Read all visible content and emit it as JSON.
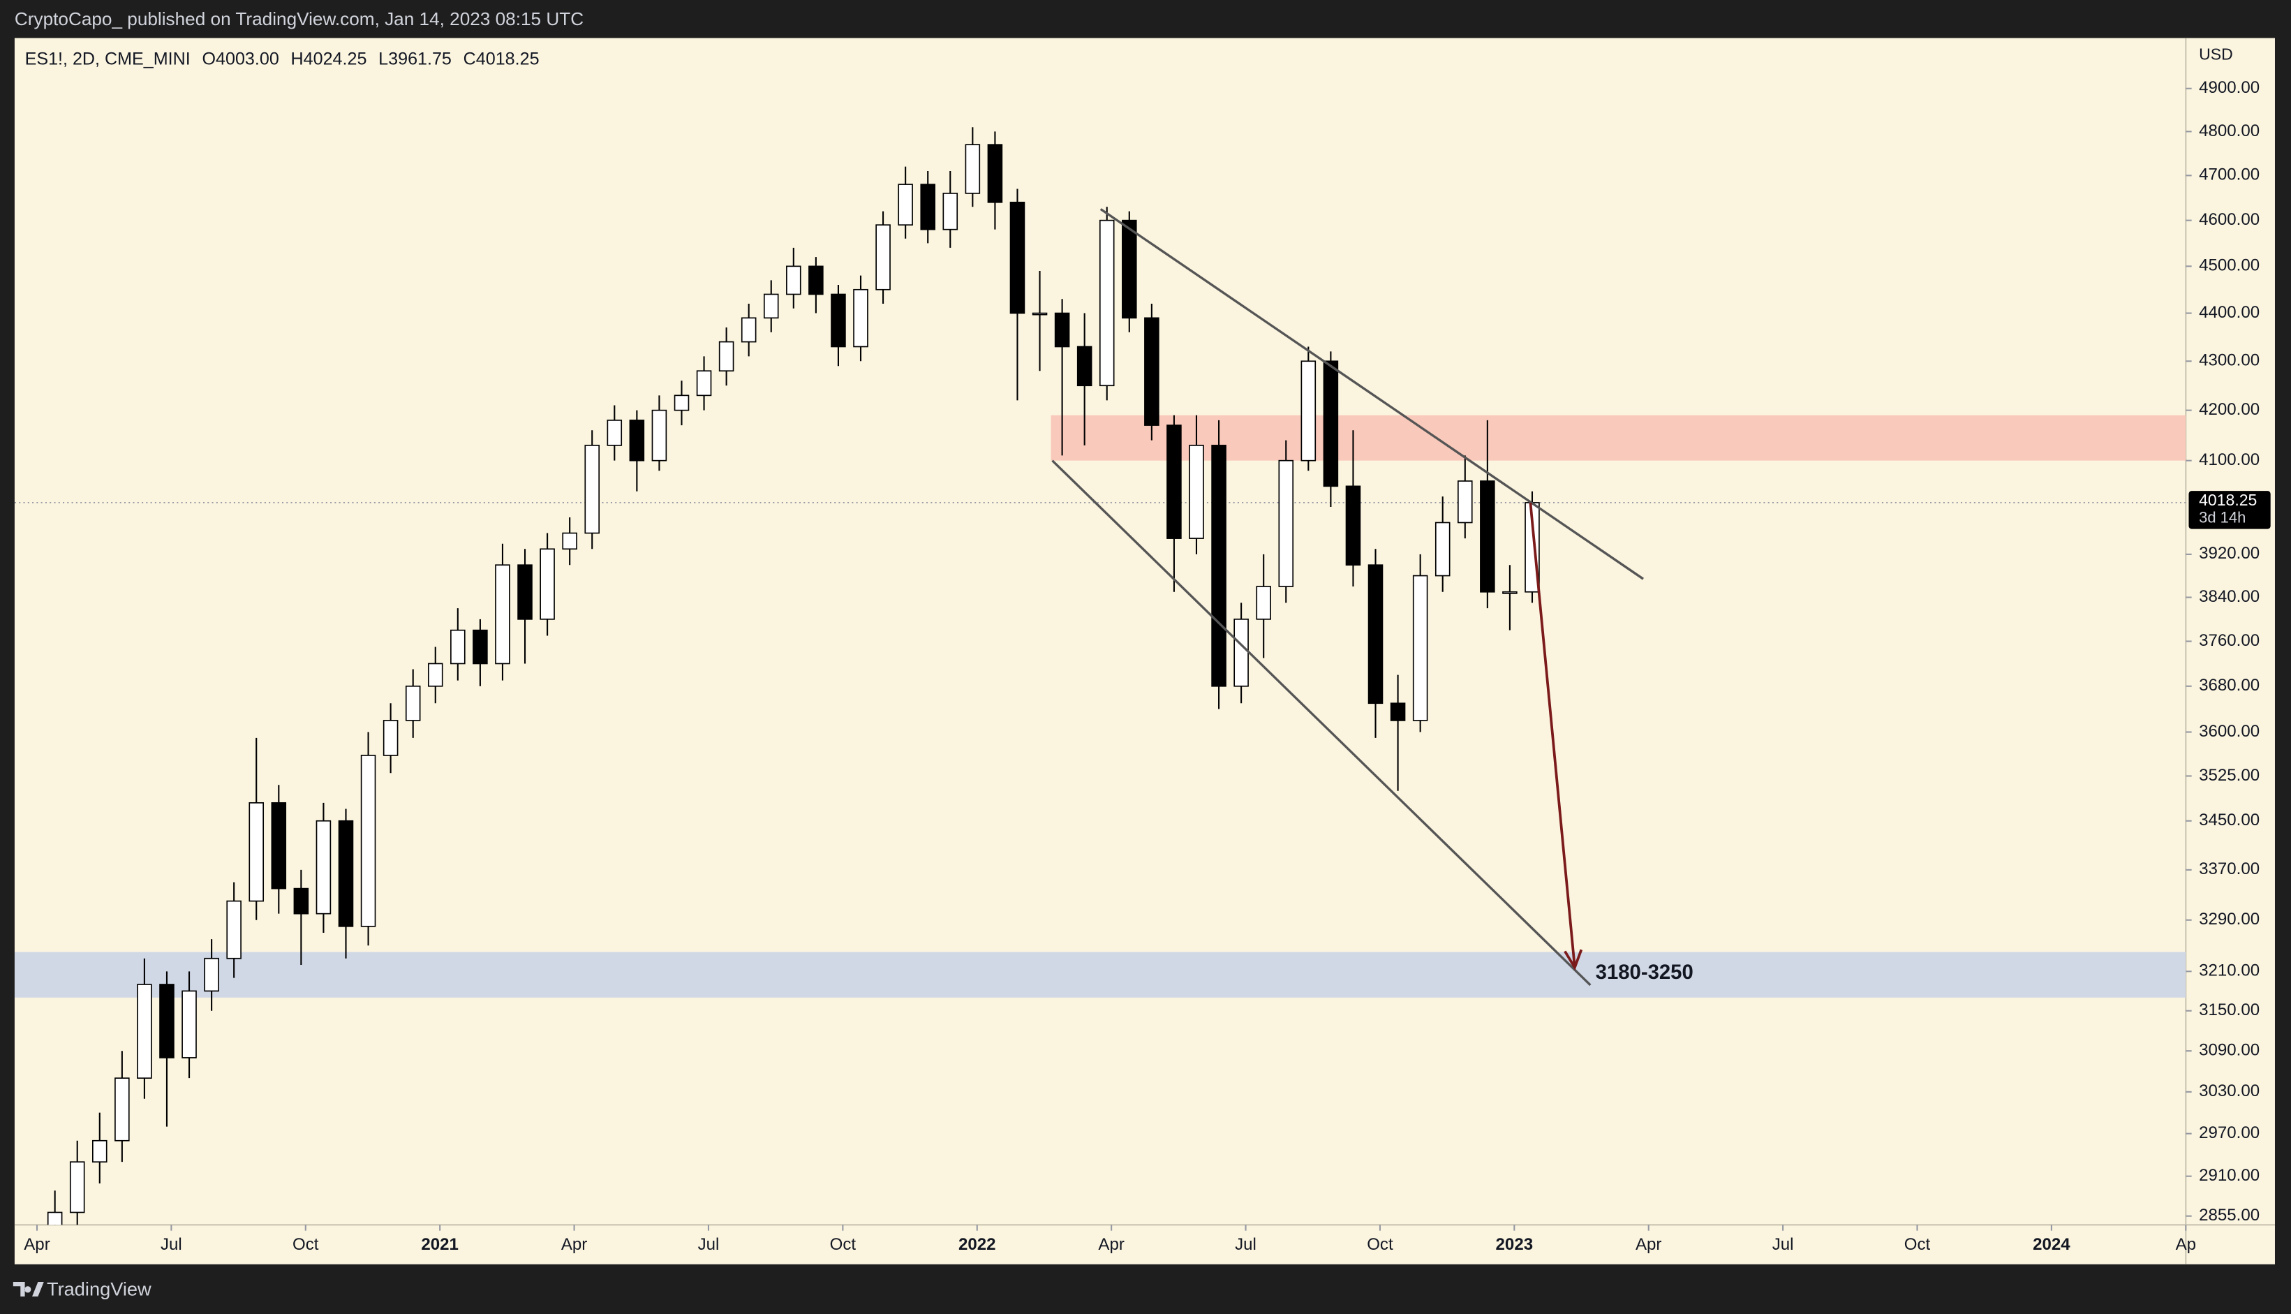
{
  "header": {
    "published": "CryptoCapo_ published on TradingView.com, Jan 14, 2023 08:15 UTC",
    "symbol": "ES1!, 2D, CME_MINI",
    "ohlc_labels": [
      "O4003.00",
      "H4024.25",
      "L3961.75",
      "C4018.25"
    ]
  },
  "footer": {
    "brand": "TradingView"
  },
  "chart_data": {
    "type": "candlestick",
    "currency": "USD",
    "log_scale": true,
    "up_color": "#ffffff",
    "down_color": "#000000",
    "wick_color": "#000000",
    "x": [
      3.4,
      3.9,
      4.4,
      4.9,
      5.4,
      5.9,
      6.4,
      6.9,
      7.4,
      7.9,
      8.4,
      8.9,
      9.4,
      9.9,
      10.4,
      10.9,
      11.4,
      11.9,
      12.4,
      12.9,
      13.4,
      13.9,
      14.4,
      14.9,
      15.4,
      15.9,
      16.4,
      16.9,
      17.4,
      17.9,
      18.4,
      18.9,
      19.4,
      19.9,
      20.4,
      20.9,
      21.4,
      21.9,
      22.4,
      22.9,
      23.4,
      23.9,
      24.4,
      24.9,
      25.4,
      25.9,
      26.4,
      26.9,
      27.4,
      27.9,
      28.4,
      28.9,
      29.4,
      29.9,
      30.4,
      30.9,
      31.4,
      31.9,
      32.4,
      32.9,
      33.4,
      33.9,
      34.4,
      34.9,
      35.4,
      35.9,
      36.4
    ],
    "open": [
      2800,
      2860,
      2930,
      2960,
      3050,
      3190,
      3080,
      3180,
      3230,
      3320,
      3480,
      3340,
      3300,
      3450,
      3280,
      3560,
      3620,
      3680,
      3720,
      3780,
      3720,
      3900,
      3800,
      3930,
      3960,
      4130,
      4180,
      4100,
      4200,
      4230,
      4280,
      4340,
      4390,
      4440,
      4500,
      4440,
      4330,
      4450,
      4590,
      4680,
      4580,
      4660,
      4770,
      4640,
      4400,
      4400,
      4330,
      4250,
      4600,
      4390,
      4170,
      3950,
      4130,
      3680,
      3800,
      3860,
      4100,
      4300,
      4050,
      3900,
      3650,
      3620,
      3880,
      3980,
      4060,
      3850,
      3850
    ],
    "high": [
      2890,
      2960,
      3000,
      3090,
      3230,
      3210,
      3210,
      3260,
      3350,
      3590,
      3510,
      3370,
      3480,
      3470,
      3600,
      3650,
      3710,
      3750,
      3820,
      3800,
      3940,
      3930,
      3960,
      3990,
      4160,
      4210,
      4200,
      4230,
      4260,
      4310,
      4370,
      4420,
      4470,
      4540,
      4520,
      4460,
      4480,
      4620,
      4720,
      4710,
      4710,
      4810,
      4800,
      4670,
      4490,
      4430,
      4400,
      4630,
      4620,
      4420,
      4190,
      4190,
      4180,
      3830,
      3920,
      4140,
      4330,
      4320,
      4160,
      3930,
      3700,
      3920,
      4030,
      4110,
      4180,
      3900,
      4040
    ],
    "low": [
      2760,
      2830,
      2900,
      2930,
      3020,
      2980,
      3050,
      3150,
      3200,
      3290,
      3300,
      3220,
      3270,
      3230,
      3250,
      3530,
      3590,
      3650,
      3690,
      3680,
      3690,
      3720,
      3770,
      3900,
      3930,
      4100,
      4040,
      4080,
      4170,
      4200,
      4250,
      4310,
      4360,
      4410,
      4400,
      4290,
      4300,
      4420,
      4560,
      4550,
      4540,
      4630,
      4580,
      4220,
      4280,
      4110,
      4130,
      4220,
      4360,
      4140,
      3850,
      3920,
      3640,
      3650,
      3730,
      3830,
      4080,
      4010,
      3860,
      3590,
      3500,
      3600,
      3850,
      3950,
      3820,
      3780,
      3830
    ],
    "close": [
      2860,
      2930,
      2960,
      3050,
      3190,
      3080,
      3180,
      3230,
      3320,
      3480,
      3340,
      3300,
      3450,
      3280,
      3560,
      3620,
      3680,
      3720,
      3780,
      3720,
      3900,
      3800,
      3930,
      3960,
      4130,
      4180,
      4100,
      4200,
      4230,
      4280,
      4340,
      4390,
      4440,
      4500,
      4440,
      4330,
      4450,
      4590,
      4680,
      4580,
      4660,
      4770,
      4640,
      4400,
      4400,
      4330,
      4250,
      4600,
      4390,
      4170,
      3950,
      4130,
      3680,
      3800,
      3860,
      4100,
      4300,
      4050,
      3900,
      3650,
      3620,
      3880,
      3980,
      4060,
      3850,
      3850,
      4018.25
    ],
    "xlim": [
      2.5,
      51
    ],
    "ylim": [
      2843,
      5020
    ],
    "xticks": [
      {
        "value": 3,
        "label": "Apr"
      },
      {
        "value": 6,
        "label": "Jul"
      },
      {
        "value": 9,
        "label": "Oct"
      },
      {
        "value": 12,
        "label": "2021"
      },
      {
        "value": 15,
        "label": "Apr"
      },
      {
        "value": 18,
        "label": "Jul"
      },
      {
        "value": 21,
        "label": "Oct"
      },
      {
        "value": 24,
        "label": "2022"
      },
      {
        "value": 27,
        "label": "Apr"
      },
      {
        "value": 30,
        "label": "Jul"
      },
      {
        "value": 33,
        "label": "Oct"
      },
      {
        "value": 36,
        "label": "2023"
      },
      {
        "value": 39,
        "label": "Apr"
      },
      {
        "value": 42,
        "label": "Jul"
      },
      {
        "value": 45,
        "label": "Oct"
      },
      {
        "value": 48,
        "label": "2024"
      },
      {
        "value": 51,
        "label": "Ap"
      }
    ],
    "yticks": [
      {
        "value": 4900,
        "label": "4900.00"
      },
      {
        "value": 4800,
        "label": "4800.00"
      },
      {
        "value": 4700,
        "label": "4700.00"
      },
      {
        "value": 4600,
        "label": "4600.00"
      },
      {
        "value": 4500,
        "label": "4500.00"
      },
      {
        "value": 4400,
        "label": "4400.00"
      },
      {
        "value": 4300,
        "label": "4300.00"
      },
      {
        "value": 4200,
        "label": "4200.00"
      },
      {
        "value": 4100,
        "label": "4100.00"
      },
      {
        "value": 3920,
        "label": "3920.00"
      },
      {
        "value": 3840,
        "label": "3840.00"
      },
      {
        "value": 3760,
        "label": "3760.00"
      },
      {
        "value": 3680,
        "label": "3680.00"
      },
      {
        "value": 3600,
        "label": "3600.00"
      },
      {
        "value": 3525,
        "label": "3525.00"
      },
      {
        "value": 3450,
        "label": "3450.00"
      },
      {
        "value": 3370,
        "label": "3370.00"
      },
      {
        "value": 3290,
        "label": "3290.00"
      },
      {
        "value": 3210,
        "label": "3210.00"
      },
      {
        "value": 3150,
        "label": "3150.00"
      },
      {
        "value": 3090,
        "label": "3090.00"
      },
      {
        "value": 3030,
        "label": "3030.00"
      },
      {
        "value": 2970,
        "label": "2970.00"
      },
      {
        "value": 2910,
        "label": "2910.00"
      },
      {
        "value": 2855,
        "label": "2855.00"
      }
    ],
    "last_price": 4018.25,
    "countdown": "3d 14h",
    "zones": [
      {
        "x": [
          25.65,
          51
        ],
        "price": [
          4100,
          4190
        ],
        "color": "#f9c9bb"
      },
      {
        "x": [
          2.5,
          51
        ],
        "price": [
          3170,
          3240
        ],
        "color": "#d0d8e6"
      }
    ],
    "trendlines": [
      {
        "points": [
          [
            26.76,
            4625
          ],
          [
            38.88,
            3874
          ]
        ],
        "color": "#555555"
      },
      {
        "points": [
          [
            25.68,
            4100
          ],
          [
            37.7,
            3189
          ]
        ],
        "color": "#555555"
      }
    ],
    "arrow": {
      "points": [
        [
          36.36,
          4018
        ],
        [
          37.35,
          3216
        ]
      ],
      "color": "#7b1a1a"
    },
    "target_label": "3180-3250"
  }
}
